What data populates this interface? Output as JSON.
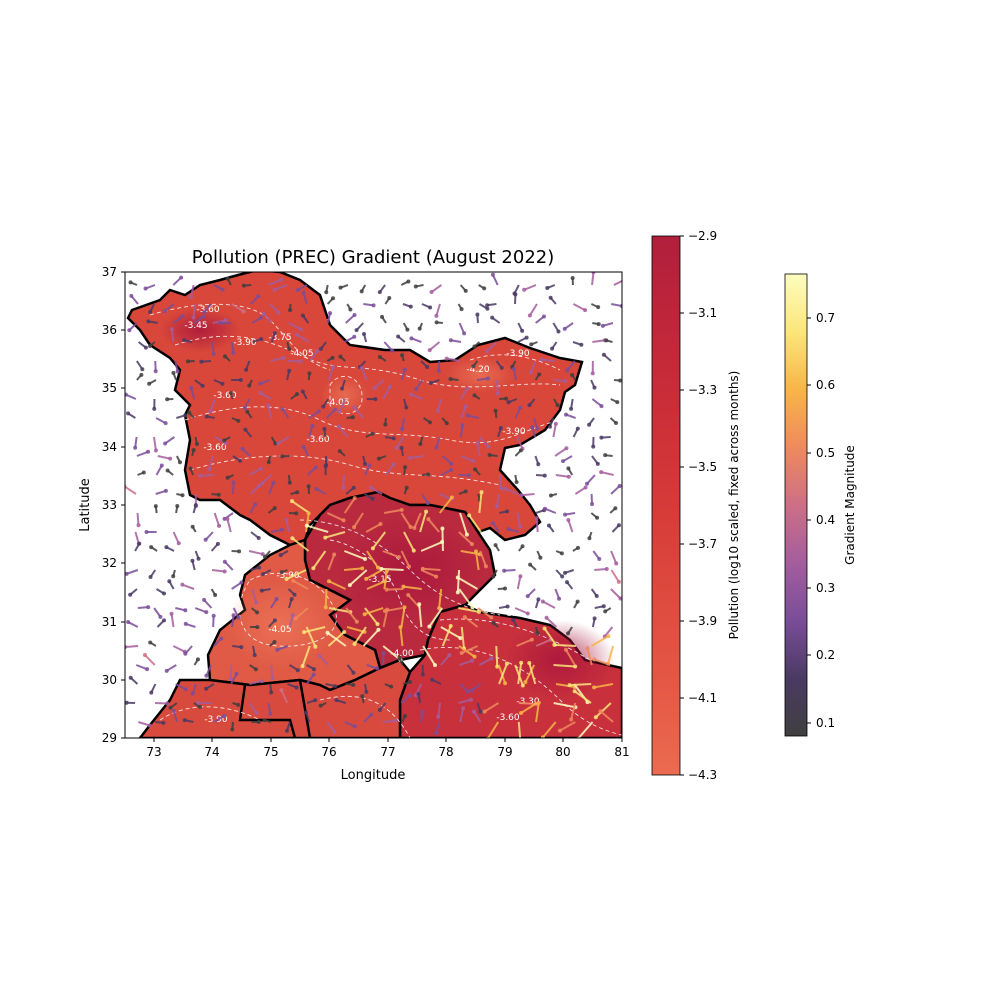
{
  "title": "Pollution (PREC) Gradient (August 2022)",
  "xlabel": "Longitude",
  "ylabel": "Latitude",
  "x_ticks": [
    "73",
    "74",
    "75",
    "76",
    "77",
    "78",
    "79",
    "80",
    "81"
  ],
  "y_ticks": [
    "29",
    "30",
    "31",
    "32",
    "33",
    "34",
    "35",
    "36",
    "37"
  ],
  "xlim": [
    72.5,
    81
  ],
  "ylim": [
    29,
    37
  ],
  "colorbar_pollution": {
    "label": "Pollution (log10 scaled, fixed across months)",
    "ticks": [
      "−2.9",
      "−3.1",
      "−3.3",
      "−3.5",
      "−3.7",
      "−3.9",
      "−4.1",
      "−4.3"
    ],
    "range": [
      -4.3,
      -2.9
    ],
    "colors": [
      "#eb6b50",
      "#e55845",
      "#de4a3f",
      "#d63a38",
      "#cc2f38",
      "#c0263a",
      "#b01f3c"
    ]
  },
  "colorbar_gradient": {
    "label": "Gradient Magnitude",
    "ticks": [
      "0.1",
      "0.2",
      "0.3",
      "0.4",
      "0.5",
      "0.6",
      "0.7"
    ],
    "range": [
      0.08,
      0.765
    ],
    "colors": [
      "#3f3f3f",
      "#4a3a63",
      "#7a4d99",
      "#a45d9d",
      "#cd6f86",
      "#ef8a5d",
      "#f8b548",
      "#fbe67a",
      "#fcfdbf"
    ]
  },
  "contour_labels": [
    "-3.60",
    "-3.45",
    "-3.75",
    "-4.05",
    "-4.05",
    "-3.60",
    "-3.60",
    "-4.05",
    "-3.60",
    "-3.90",
    "-4.20",
    "-3.90",
    "-3.90",
    "-4.05",
    "-3.15",
    "-3.00",
    "-3.00",
    "-3.60",
    "-3.90",
    "-3.30",
    "-3.90",
    "-4.00"
  ],
  "chart_data": {
    "type": "map",
    "title": "Pollution (PREC) Gradient (August 2022)",
    "xlabel": "Longitude",
    "ylabel": "Latitude",
    "xlim": [
      72.5,
      81
    ],
    "ylim": [
      29,
      37
    ],
    "fields": [
      "pollution contour fill",
      "gradient arrows colored by magnitude",
      "state boundaries"
    ]
  }
}
